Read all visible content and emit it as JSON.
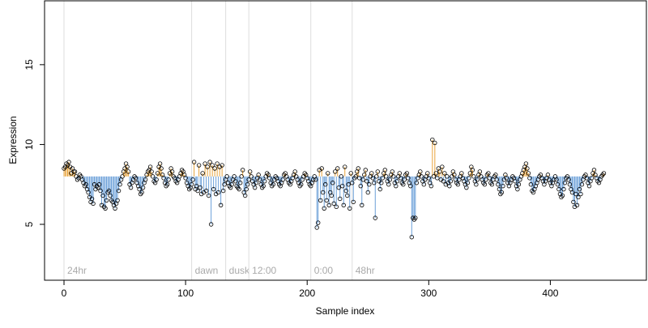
{
  "chart_data": {
    "type": "scatter",
    "xlabel": "Sample index",
    "ylabel": "Expression",
    "xlim": [
      -16,
      479
    ],
    "ylim": [
      1.5,
      19
    ],
    "xticks": [
      0,
      100,
      200,
      300,
      400
    ],
    "yticks": [
      5,
      10,
      15
    ],
    "baseline": 8.0,
    "colors": {
      "above": "#e8a33a",
      "below": "#6a9fd8",
      "points": "#000000",
      "vlines": "#dddddd"
    },
    "vlines": [
      {
        "x": 0,
        "label": "24hr"
      },
      {
        "x": 105,
        "label": "dawn"
      },
      {
        "x": 133,
        "label": "dusk"
      },
      {
        "x": 152,
        "label": "12:00"
      },
      {
        "x": 203,
        "label": "0:00"
      },
      {
        "x": 237,
        "label": "48hr"
      }
    ],
    "series": [
      {
        "values": [
          8.5,
          8.6,
          8.8,
          8.7,
          8.9,
          8.6,
          8.2,
          8.5,
          8.3,
          8.3,
          8.0,
          7.8,
          7.9,
          8.1,
          8.0,
          7.8,
          7.6,
          7.4,
          7.5,
          7.2,
          7.0,
          6.7,
          6.4,
          6.6,
          6.3,
          7.5,
          7.2,
          7.4,
          7.3,
          7.5,
          7.1,
          6.2,
          6.8,
          6.1,
          6.0,
          6.5,
          7.0,
          7.1,
          6.8,
          6.5,
          6.4,
          6.2,
          6.0,
          6.3,
          6.5,
          7.1,
          7.5,
          7.8,
          8.0,
          8.3,
          8.5,
          8.8,
          8.6,
          8.3,
          7.5,
          7.3,
          7.6,
          7.8,
          8.0,
          7.9,
          7.6,
          7.4,
          7.2,
          6.9,
          7.0,
          7.3,
          7.6,
          7.8,
          8.1,
          8.3,
          8.4,
          8.6,
          8.3,
          8.0,
          7.7,
          7.6,
          7.8,
          8.2,
          8.6,
          8.8,
          8.5,
          8.1,
          7.9,
          7.6,
          7.4,
          7.5,
          7.8,
          8.2,
          8.5,
          8.3,
          8.0,
          7.9,
          7.7,
          7.6,
          7.8,
          8.0,
          8.2,
          8.4,
          8.3,
          8.1,
          7.9,
          7.6,
          7.4,
          7.2,
          7.3,
          7.5,
          7.8,
          8.9,
          7.2,
          7.4,
          7.1,
          8.7,
          7.3,
          6.9,
          8.2,
          7.0,
          8.8,
          7.1,
          8.6,
          6.8,
          8.9,
          5.0,
          8.7,
          7.2,
          8.5,
          6.9,
          8.8,
          7.0,
          8.6,
          6.2,
          8.7,
          7.1,
          7.5,
          7.8,
          8.0,
          7.6,
          7.4,
          7.3,
          7.5,
          7.8,
          8.0,
          7.7,
          7.4,
          7.3,
          7.2,
          7.6,
          8.0,
          8.4,
          7.0,
          6.8,
          7.2,
          7.5,
          7.8,
          8.3,
          8.0,
          7.7,
          7.5,
          7.3,
          7.6,
          7.9,
          8.1,
          7.8,
          7.5,
          7.3,
          7.4,
          7.7,
          8.0,
          8.2,
          8.1,
          7.9,
          7.6,
          7.4,
          7.5,
          7.8,
          8.0,
          7.9,
          7.7,
          7.5,
          7.4,
          7.6,
          7.8,
          8.1,
          8.2,
          8.0,
          7.8,
          7.6,
          7.5,
          7.7,
          7.9,
          8.1,
          8.3,
          8.0,
          7.8,
          7.6,
          7.4,
          7.5,
          7.8,
          8.0,
          8.2,
          8.1,
          7.9,
          7.7,
          7.5,
          7.4,
          7.6,
          7.8,
          8.0,
          7.8,
          4.8,
          5.1,
          8.4,
          6.5,
          8.5,
          7.0,
          6.0,
          7.5,
          6.5,
          8.2,
          6.2,
          7.0,
          6.8,
          7.6,
          6.3,
          8.3,
          6.1,
          8.5,
          7.3,
          6.6,
          8.0,
          7.4,
          6.2,
          8.6,
          7.1,
          6.8,
          7.5,
          6.0,
          8.2,
          7.6,
          6.4,
          7.9,
          8.0,
          8.3,
          8.5,
          7.9,
          7.4,
          6.2,
          7.8,
          8.1,
          8.4,
          7.7,
          7.0,
          7.5,
          8.0,
          8.2,
          7.9,
          7.6,
          5.4,
          8.0,
          8.3,
          7.7,
          7.2,
          7.6,
          7.9,
          8.2,
          8.4,
          8.0,
          7.7,
          7.5,
          7.8,
          8.1,
          8.3,
          8.0,
          7.6,
          7.4,
          7.7,
          8.0,
          8.2,
          7.9,
          7.6,
          7.5,
          7.8,
          8.1,
          8.2,
          7.9,
          7.6,
          7.4,
          4.2,
          5.4,
          5.3,
          5.4,
          7.6,
          7.9,
          8.1,
          8.3,
          8.0,
          7.7,
          7.5,
          7.8,
          8.0,
          8.2,
          7.9,
          7.6,
          7.4,
          10.3,
          8.0,
          10.1,
          8.2,
          7.9,
          8.5,
          8.3,
          7.8,
          8.6,
          7.7,
          8.2,
          7.5,
          8.0,
          7.6,
          7.4,
          7.7,
          8.0,
          8.3,
          8.1,
          7.8,
          7.6,
          7.5,
          7.8,
          8.0,
          8.2,
          7.9,
          7.7,
          7.5,
          7.3,
          7.6,
          7.9,
          8.2,
          8.6,
          8.4,
          8.0,
          7.7,
          7.5,
          7.8,
          8.1,
          8.3,
          8.0,
          7.8,
          7.6,
          7.5,
          7.8,
          8.1,
          8.2,
          7.9,
          7.6,
          7.5,
          7.8,
          8.0,
          8.1,
          7.8,
          7.5,
          7.2,
          6.9,
          7.0,
          7.4,
          7.8,
          8.1,
          7.9,
          7.6,
          7.4,
          7.6,
          7.8,
          8.0,
          7.9,
          7.7,
          7.4,
          7.2,
          7.5,
          7.8,
          8.0,
          8.2,
          8.4,
          8.6,
          8.8,
          8.5,
          8.2,
          7.9,
          7.5,
          7.1,
          7.0,
          7.2,
          7.4,
          7.6,
          7.8,
          8.0,
          8.1,
          7.9,
          7.7,
          7.5,
          7.7,
          7.9,
          8.1,
          7.8,
          7.6,
          7.4,
          7.6,
          7.8,
          8.0,
          7.8,
          7.5,
          7.2,
          6.9,
          6.7,
          6.8,
          7.2,
          7.6,
          7.9,
          8.0,
          7.8,
          7.5,
          7.2,
          7.0,
          6.4,
          6.1,
          6.9,
          6.2,
          6.7,
          7.2,
          6.9,
          7.5,
          7.8,
          8.0,
          8.1,
          7.9,
          7.6,
          7.4,
          7.7,
          7.9,
          8.2,
          8.4,
          8.1,
          7.9,
          7.7,
          7.6,
          7.8,
          8.0,
          8.1,
          8.2
        ]
      }
    ]
  }
}
